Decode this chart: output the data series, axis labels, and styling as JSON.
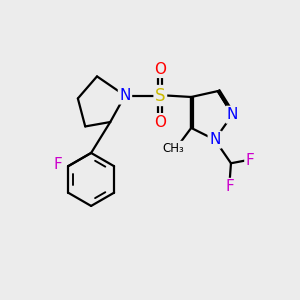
{
  "bg_color": "#ececec",
  "bond_color": "#000000",
  "bond_width": 1.6,
  "atom_colors": {
    "N": "#0000ff",
    "S": "#ccbb00",
    "O": "#ff0000",
    "F": "#cc00cc",
    "C": "#000000"
  },
  "font_size": 11,
  "dbo": 0.06
}
